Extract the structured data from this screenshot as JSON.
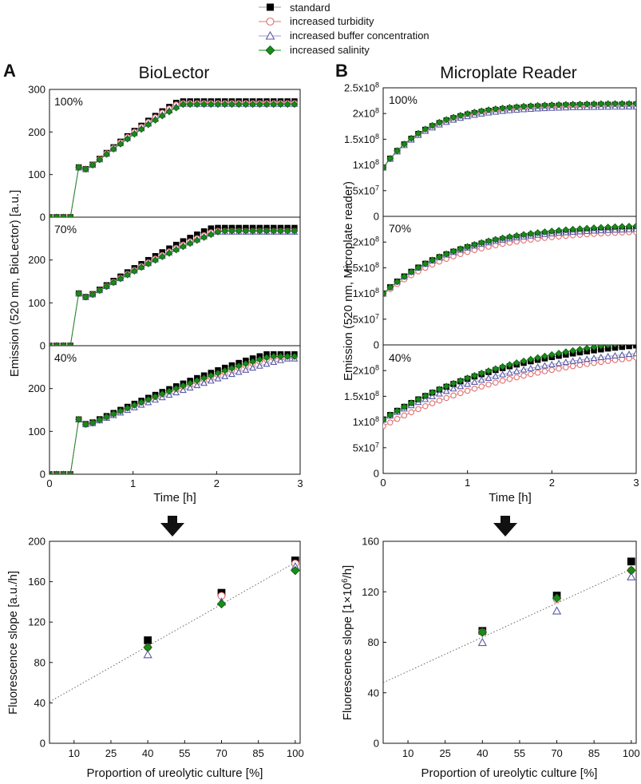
{
  "figure": {
    "panel_letters": [
      "A",
      "B"
    ],
    "titles": [
      "BioLector",
      "Microplate Reader"
    ],
    "legend": [
      {
        "name": "standard",
        "marker": "square",
        "color": "#000000",
        "filled": true,
        "line_color": "#9a9a9a"
      },
      {
        "name": "increased turbidity",
        "marker": "circle",
        "color": "#e07070",
        "filled": false,
        "line_color": "#e07070"
      },
      {
        "name": "increased buffer concentration",
        "marker": "triangle",
        "color": "#5a5aa8",
        "filled": false,
        "line_color": "#9a9ad0"
      },
      {
        "name": "increased salinity",
        "marker": "diamond",
        "color": "#1a8a1a",
        "filled": true,
        "line_color": "#1a8a1a"
      }
    ]
  },
  "chart_data": [
    {
      "type": "line",
      "title": "BioLector",
      "xlabel": "Time [h]",
      "ylabel": "Emission (520 nm, BioLector) [a.u.]",
      "xlim": [
        0,
        3
      ],
      "x_ticks": [
        "0",
        "1",
        "2",
        "3"
      ],
      "ylim": [
        0,
        300
      ],
      "panels": [
        {
          "label": "100%",
          "y_ticks": [
            "0",
            "100",
            "200",
            "300"
          ],
          "series": [
            {
              "name": "standard",
              "x0": 0.35,
              "y0": 117,
              "dip": 112,
              "plateau": 272,
              "t_plateau": 1.55
            },
            {
              "name": "increased turbidity",
              "x0": 0.35,
              "y0": 117,
              "dip": 112,
              "plateau": 268,
              "t_plateau": 1.55
            },
            {
              "name": "increased buffer concentration",
              "x0": 0.35,
              "y0": 117,
              "dip": 112,
              "plateau": 266,
              "t_plateau": 1.58
            },
            {
              "name": "increased salinity",
              "x0": 0.35,
              "y0": 117,
              "dip": 112,
              "plateau": 265,
              "t_plateau": 1.6
            }
          ]
        },
        {
          "label": "70%",
          "y_ticks": [
            "0",
            "100",
            "200"
          ],
          "series": [
            {
              "name": "standard",
              "x0": 0.35,
              "y0": 122,
              "dip": 112,
              "plateau": 275,
              "t_plateau": 1.95
            },
            {
              "name": "increased turbidity",
              "x0": 0.35,
              "y0": 122,
              "dip": 112,
              "plateau": 268,
              "t_plateau": 1.98
            },
            {
              "name": "increased buffer concentration",
              "x0": 0.35,
              "y0": 122,
              "dip": 112,
              "plateau": 266,
              "t_plateau": 2.0
            },
            {
              "name": "increased salinity",
              "x0": 0.35,
              "y0": 122,
              "dip": 112,
              "plateau": 268,
              "t_plateau": 2.05
            }
          ]
        },
        {
          "label": "40%",
          "y_ticks": [
            "0",
            "100",
            "200"
          ],
          "series": [
            {
              "name": "standard",
              "x0": 0.35,
              "y0": 128,
              "dip": 115,
              "plateau": 280,
              "t_plateau": 2.6
            },
            {
              "name": "increased turbidity",
              "x0": 0.35,
              "y0": 128,
              "dip": 114,
              "plateau": 272,
              "t_plateau": 2.7
            },
            {
              "name": "increased buffer concentration",
              "x0": 0.35,
              "y0": 128,
              "dip": 114,
              "plateau": 270,
              "t_plateau": 2.85
            },
            {
              "name": "increased salinity",
              "x0": 0.35,
              "y0": 128,
              "dip": 114,
              "plateau": 275,
              "t_plateau": 2.65
            }
          ]
        }
      ]
    },
    {
      "type": "line",
      "title": "Microplate Reader",
      "xlabel": "Time [h]",
      "ylabel": "Emission (520 nm, Microplate reader)",
      "xlim": [
        0,
        3
      ],
      "x_ticks": [
        "0",
        "1",
        "2",
        "3"
      ],
      "ylim": [
        0,
        250000000
      ],
      "panels": [
        {
          "label": "100%",
          "y_ticks": [
            "0",
            "5x10^7",
            "1x10^8",
            "1.5x10^8",
            "2x10^8",
            "2.5x10^8"
          ],
          "series": [
            {
              "name": "standard",
              "y0": 95000000,
              "plateau": 218000000,
              "tau": 0.55
            },
            {
              "name": "increased turbidity",
              "y0": 95000000,
              "plateau": 216000000,
              "tau": 0.55
            },
            {
              "name": "increased buffer concentration",
              "y0": 95000000,
              "plateau": 214000000,
              "tau": 0.55
            },
            {
              "name": "increased salinity",
              "y0": 95000000,
              "plateau": 220000000,
              "tau": 0.55
            }
          ]
        },
        {
          "label": "70%",
          "y_ticks": [
            "0",
            "5x10^7",
            "1x10^8",
            "1.5x10^8",
            "2x10^8"
          ],
          "series": [
            {
              "name": "standard",
              "y0": 100000000,
              "plateau": 230000000,
              "tau": 0.85
            },
            {
              "name": "increased turbidity",
              "y0": 98000000,
              "plateau": 225000000,
              "tau": 0.95
            },
            {
              "name": "increased buffer concentration",
              "y0": 100000000,
              "plateau": 229000000,
              "tau": 0.85
            },
            {
              "name": "increased salinity",
              "y0": 100000000,
              "plateau": 236000000,
              "tau": 0.9
            }
          ]
        },
        {
          "label": "40%",
          "y_ticks": [
            "0",
            "5x10^7",
            "1x10^8",
            "1.5x10^8",
            "2x10^8"
          ],
          "series": [
            {
              "name": "standard",
              "y0": 105000000,
              "plateau": 275000000,
              "tau": 1.6
            },
            {
              "name": "increased turbidity",
              "y0": 92000000,
              "plateau": 260000000,
              "tau": 1.9
            },
            {
              "name": "increased buffer concentration",
              "y0": 105000000,
              "plateau": 260000000,
              "tau": 1.7
            },
            {
              "name": "increased salinity",
              "y0": 105000000,
              "plateau": 290000000,
              "tau": 1.75
            }
          ]
        }
      ]
    },
    {
      "type": "scatter",
      "title": "",
      "xlabel": "Proportion of ureolytic culture [%]",
      "ylabel": "Fluorescence slope [a.u./h]",
      "xlim": [
        0,
        102
      ],
      "x_ticks": [
        10,
        25,
        40,
        55,
        70,
        85,
        100
      ],
      "ylim": [
        0,
        200
      ],
      "y_ticks": [
        0,
        40,
        80,
        120,
        160,
        200
      ],
      "fit_line": {
        "slope": 1.38,
        "intercept": 41,
        "style": "dotted"
      },
      "series": [
        {
          "name": "standard",
          "x": [
            40,
            70,
            100
          ],
          "y": [
            102,
            149,
            181
          ]
        },
        {
          "name": "increased turbidity",
          "x": [
            40,
            70,
            100
          ],
          "y": [
            95,
            146,
            178
          ]
        },
        {
          "name": "increased buffer concentration",
          "x": [
            40,
            70,
            100
          ],
          "y": [
            88,
            140,
            175
          ]
        },
        {
          "name": "increased salinity",
          "x": [
            40,
            70,
            100
          ],
          "y": [
            95,
            138,
            171
          ]
        }
      ]
    },
    {
      "type": "scatter",
      "title": "",
      "xlabel": "Proportion of ureolytic culture [%]",
      "ylabel": "Fluorescence slope [1x10^6/h]",
      "xlim": [
        0,
        102
      ],
      "x_ticks": [
        10,
        25,
        40,
        55,
        70,
        85,
        100
      ],
      "ylim": [
        0,
        160
      ],
      "y_ticks": [
        0,
        40,
        80,
        120,
        160
      ],
      "fit_line": {
        "slope": 0.9,
        "intercept": 48,
        "style": "dotted"
      },
      "series": [
        {
          "name": "standard",
          "x": [
            40,
            70,
            100
          ],
          "y": [
            89,
            117,
            144
          ]
        },
        {
          "name": "increased turbidity",
          "x": [
            40,
            70,
            100
          ],
          "y": [
            88,
            114,
            137
          ]
        },
        {
          "name": "increased buffer concentration",
          "x": [
            40,
            70,
            100
          ],
          "y": [
            80,
            105,
            132
          ]
        },
        {
          "name": "increased salinity",
          "x": [
            40,
            70,
            100
          ],
          "y": [
            88,
            115,
            137
          ]
        }
      ]
    }
  ]
}
